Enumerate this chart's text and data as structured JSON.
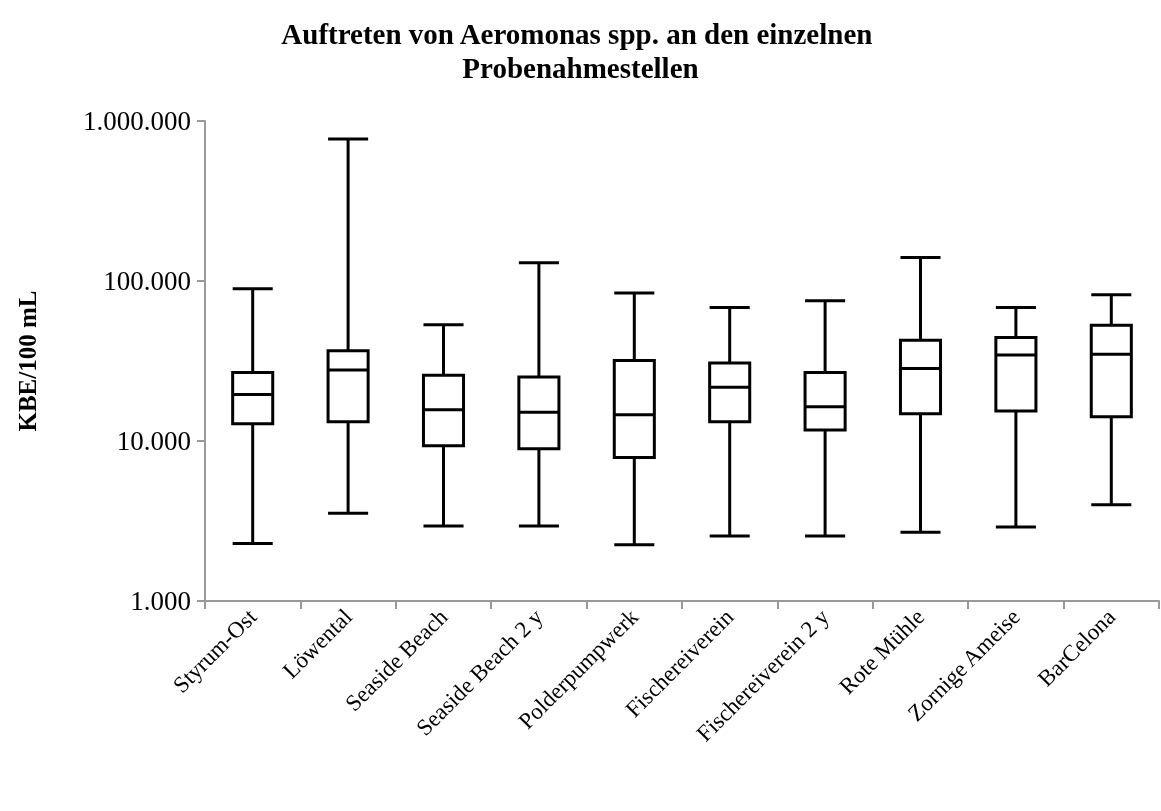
{
  "chart_data": {
    "type": "box",
    "title": "Auftreten von Aeromonas spp. an den einzelnen Probenahmestellen",
    "ylabel": "KBE/100 mL",
    "categories": [
      "Styrum-Ost",
      "Löwental",
      "Seaside Beach",
      "Seaside Beach 2 y",
      "Polderpumpwerk",
      "Fischereiverein",
      "Fischereiverein 2 y",
      "Rote Mühle",
      "Zornige Ameise",
      "BarCelona"
    ],
    "boxes": [
      {
        "low": 2290,
        "q1": 12800,
        "median": 19500,
        "q3": 26800,
        "high": 89500
      },
      {
        "low": 3530,
        "q1": 13200,
        "median": 27800,
        "q3": 36700,
        "high": 771000
      },
      {
        "low": 2940,
        "q1": 9350,
        "median": 15700,
        "q3": 25800,
        "high": 53200
      },
      {
        "low": 2940,
        "q1": 8950,
        "median": 15100,
        "q3": 25100,
        "high": 130000
      },
      {
        "low": 2250,
        "q1": 7900,
        "median": 14600,
        "q3": 31900,
        "high": 84100
      },
      {
        "low": 2550,
        "q1": 13200,
        "median": 21700,
        "q3": 30700,
        "high": 68400
      },
      {
        "low": 2550,
        "q1": 11700,
        "median": 16400,
        "q3": 26800,
        "high": 75300
      },
      {
        "low": 2690,
        "q1": 14800,
        "median": 28400,
        "q3": 42600,
        "high": 140000
      },
      {
        "low": 2900,
        "q1": 15400,
        "median": 34500,
        "q3": 44300,
        "high": 68400
      },
      {
        "low": 3990,
        "q1": 14200,
        "median": 34800,
        "q3": 52900,
        "high": 82100
      }
    ],
    "color": "#000000",
    "log": "y",
    "ylim": [
      1000,
      1000000
    ],
    "yticks": [
      {
        "value": 1000,
        "label": "1.000"
      },
      {
        "value": 10000,
        "label": "10.000"
      },
      {
        "value": 100000,
        "label": "100.000"
      },
      {
        "value": 1000000,
        "label": "1.000.000"
      }
    ],
    "grid": false
  }
}
